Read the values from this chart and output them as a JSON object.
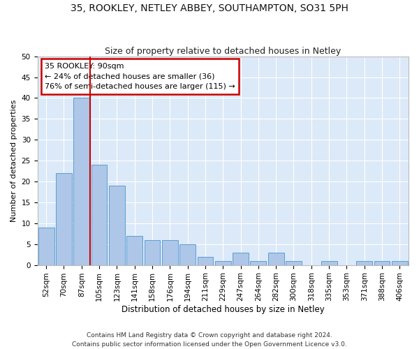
{
  "title1": "35, ROOKLEY, NETLEY ABBEY, SOUTHAMPTON, SO31 5PH",
  "title2": "Size of property relative to detached houses in Netley",
  "xlabel": "Distribution of detached houses by size in Netley",
  "ylabel": "Number of detached properties",
  "footnote": "Contains HM Land Registry data © Crown copyright and database right 2024.\nContains public sector information licensed under the Open Government Licence v3.0.",
  "bar_labels": [
    "52sqm",
    "70sqm",
    "87sqm",
    "105sqm",
    "123sqm",
    "141sqm",
    "158sqm",
    "176sqm",
    "194sqm",
    "211sqm",
    "229sqm",
    "247sqm",
    "264sqm",
    "282sqm",
    "300sqm",
    "318sqm",
    "335sqm",
    "353sqm",
    "371sqm",
    "388sqm",
    "406sqm"
  ],
  "bar_values": [
    9,
    22,
    40,
    24,
    19,
    7,
    6,
    6,
    5,
    2,
    1,
    3,
    1,
    3,
    1,
    0,
    1,
    0,
    1,
    1,
    1
  ],
  "bar_color": "#aec6e8",
  "bar_edge_color": "#5a9fd4",
  "subject_label": "35 ROOKLEY: 90sqm",
  "annotation_line1": "← 24% of detached houses are smaller (36)",
  "annotation_line2": "76% of semi-detached houses are larger (115) →",
  "annotation_box_color": "#ffffff",
  "annotation_box_edgecolor": "#cc0000",
  "subject_line_color": "#cc0000",
  "ylim": [
    0,
    50
  ],
  "yticks": [
    0,
    5,
    10,
    15,
    20,
    25,
    30,
    35,
    40,
    45,
    50
  ],
  "background_color": "#dce9f8",
  "grid_color": "#ffffff",
  "fig_background": "#ffffff",
  "title1_fontsize": 10,
  "title2_fontsize": 9,
  "xlabel_fontsize": 8.5,
  "ylabel_fontsize": 8,
  "tick_fontsize": 7.5,
  "annotation_fontsize": 8,
  "footnote_fontsize": 6.5
}
